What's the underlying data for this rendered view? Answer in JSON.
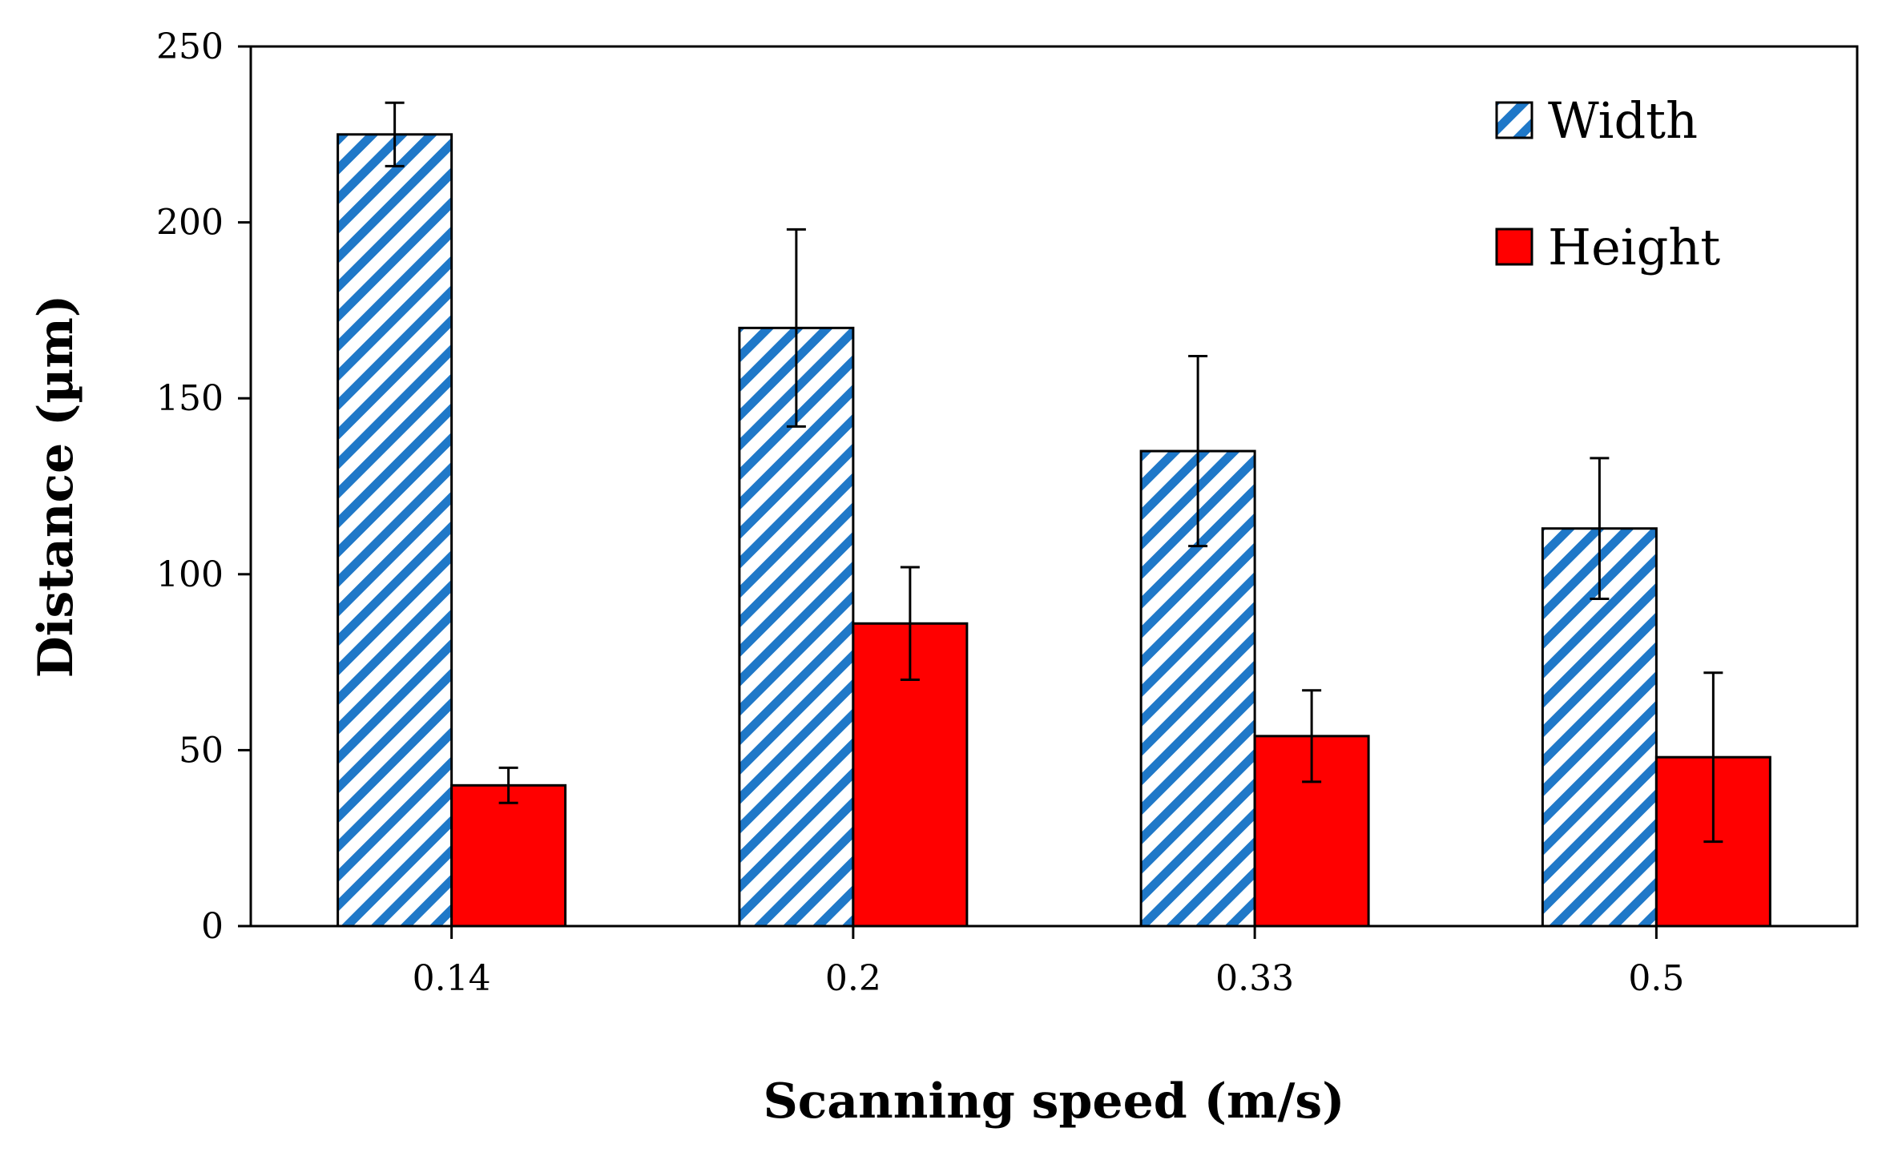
{
  "chart_data": {
    "type": "bar",
    "title": "",
    "xlabel": "Scanning speed (m/s)",
    "ylabel": "Distance (µm)",
    "categories": [
      "0.14",
      "0.2",
      "0.33",
      "0.5"
    ],
    "ylim": [
      0,
      250
    ],
    "yticks": [
      0,
      50,
      100,
      150,
      200,
      250
    ],
    "grid": false,
    "legend_position": "top-right",
    "series": [
      {
        "name": "Width",
        "values": [
          225,
          170,
          135,
          113
        ],
        "errors": [
          9,
          28,
          27,
          20
        ],
        "color": "#1f78c8",
        "pattern": "diagonal-hatch"
      },
      {
        "name": "Height",
        "values": [
          40,
          86,
          54,
          48
        ],
        "errors": [
          5,
          16,
          13,
          24
        ],
        "color": "#ff0000",
        "pattern": "solid"
      }
    ]
  }
}
